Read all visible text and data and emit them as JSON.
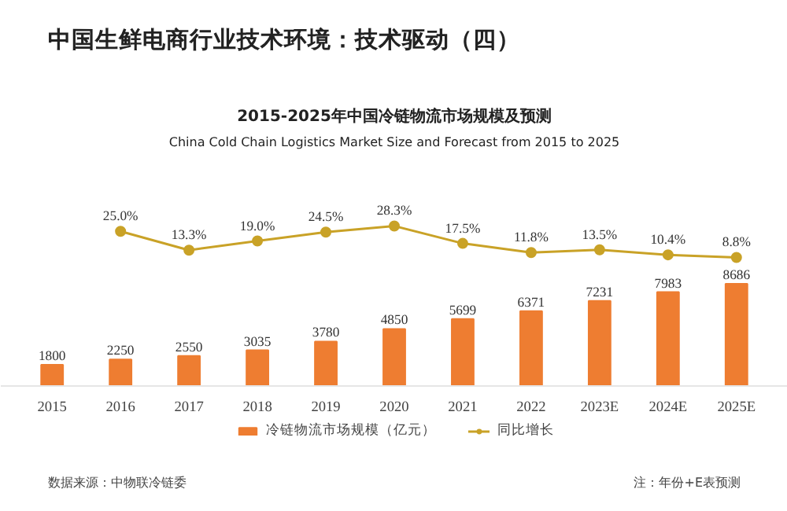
{
  "chart_data": {
    "type": "bar",
    "title": "中国生鲜电商行业技术环境：技术驱动（四）",
    "subtitle": "2015-2025年中国冷链物流市场规模及预测\nChina Cold Chain Logistics Market Size and Forecast from 2015 to 2025",
    "categories": [
      "2015",
      "2016",
      "2017",
      "2018",
      "2019",
      "2020",
      "2021",
      "2022",
      "2023E",
      "2024E",
      "2025E"
    ],
    "series": [
      {
        "name": "冷链物流市场规模（亿元）",
        "color": "#ee7d31",
        "values": [
          1800,
          2250,
          2550,
          3035,
          3780,
          4850,
          5699,
          6371,
          7231,
          7983,
          8686
        ]
      },
      {
        "name": "同比增长",
        "type": "line",
        "axis": "y2",
        "color": "#c9a227",
        "marker": "circle",
        "values": [
          null,
          25.0,
          13.3,
          19.0,
          24.5,
          28.3,
          17.5,
          11.8,
          13.5,
          10.4,
          8.8
        ],
        "value_labels": [
          null,
          "25.0%",
          "13.3%",
          "19.0%",
          "24.5%",
          "28.3%",
          "17.5%",
          "11.8%",
          "13.5%",
          "10.4%",
          "8.8%"
        ]
      }
    ],
    "ylim": [
      -10690,
      32740
    ],
    "y2lim": [
      -149,
      168
    ],
    "tick_labels": "x",
    "data_labels": true,
    "legend": "bottom",
    "grid": false,
    "annotations": [
      "数据来源：中物联冷链委",
      "注：年份+E表预测"
    ]
  }
}
